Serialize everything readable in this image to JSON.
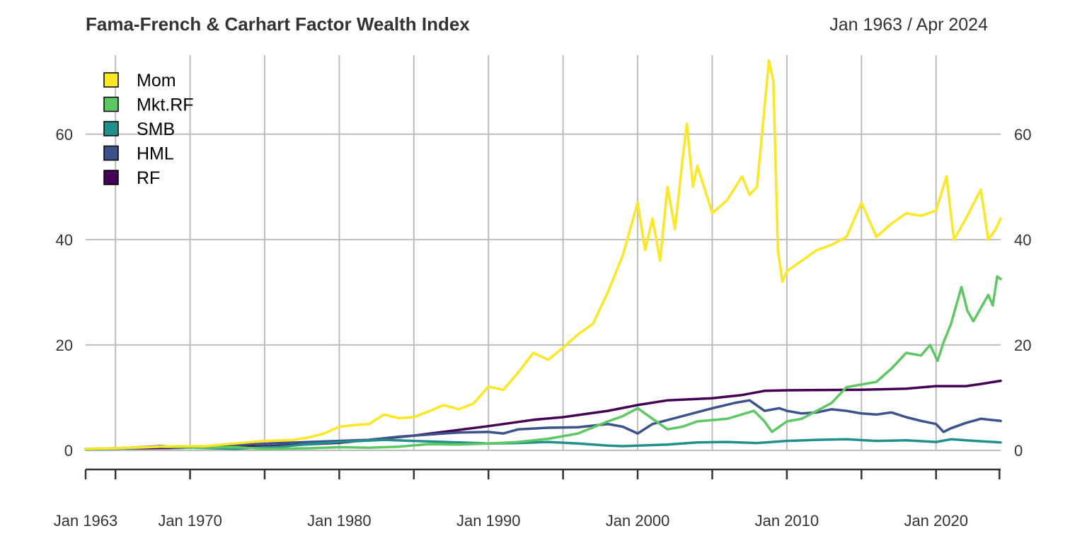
{
  "chart_data": {
    "type": "line",
    "title": "Fama-French & Carhart Factor Wealth Index",
    "date_range": "Jan 1963 / Apr 2024",
    "x_start": "1963-01",
    "x_end": "2024-04",
    "x_tick_labels": [
      "Jan 1963",
      "Jan 1970",
      "Jan 1980",
      "Jan 1990",
      "Jan 2000",
      "Jan 2010",
      "Jan 2020"
    ],
    "x_tick_years": [
      1963,
      1970,
      1980,
      1990,
      2000,
      2010,
      2020
    ],
    "x_minor_tick_years": [
      1963,
      1965,
      1970,
      1975,
      1980,
      1985,
      1990,
      1995,
      2000,
      2005,
      2010,
      2015,
      2020,
      2024.25
    ],
    "x_grid_years": [
      1965,
      1970,
      1975,
      1980,
      1985,
      1990,
      1995,
      2000,
      2005,
      2010,
      2015,
      2020
    ],
    "y_ticks": [
      0,
      20,
      40,
      60
    ],
    "ylim": [
      0,
      75
    ],
    "grid": true,
    "legend_position": "top-left",
    "series": [
      {
        "name": "Mom",
        "color": "#FDE725",
        "points": [
          [
            1963,
            0.3
          ],
          [
            1965,
            0.4
          ],
          [
            1967,
            0.6
          ],
          [
            1969,
            0.8
          ],
          [
            1971,
            0.8
          ],
          [
            1973,
            1.3
          ],
          [
            1975,
            1.8
          ],
          [
            1977,
            2.0
          ],
          [
            1978,
            2.5
          ],
          [
            1979,
            3.2
          ],
          [
            1980,
            4.5
          ],
          [
            1981,
            4.8
          ],
          [
            1982,
            5.0
          ],
          [
            1983,
            6.8
          ],
          [
            1984,
            6.1
          ],
          [
            1985,
            6.3
          ],
          [
            1986,
            7.4
          ],
          [
            1987,
            8.6
          ],
          [
            1988,
            7.8
          ],
          [
            1989,
            8.9
          ],
          [
            1990,
            12.1
          ],
          [
            1991,
            11.5
          ],
          [
            1992,
            14.8
          ],
          [
            1993,
            18.5
          ],
          [
            1994,
            17.2
          ],
          [
            1995,
            19.5
          ],
          [
            1996,
            22.0
          ],
          [
            1997,
            24.0
          ],
          [
            1998,
            30.0
          ],
          [
            1999,
            37.0
          ],
          [
            2000,
            47.0
          ],
          [
            2000.5,
            38.0
          ],
          [
            2001,
            44.0
          ],
          [
            2001.5,
            36.0
          ],
          [
            2002,
            50.0
          ],
          [
            2002.5,
            42.0
          ],
          [
            2003,
            55.0
          ],
          [
            2003.3,
            62.0
          ],
          [
            2003.7,
            50.0
          ],
          [
            2004,
            54.0
          ],
          [
            2005,
            45.0
          ],
          [
            2006,
            47.5
          ],
          [
            2007,
            52.0
          ],
          [
            2007.5,
            48.5
          ],
          [
            2008,
            50.0
          ],
          [
            2008.5,
            65.0
          ],
          [
            2008.8,
            74.0
          ],
          [
            2009.1,
            70.0
          ],
          [
            2009.4,
            38.0
          ],
          [
            2009.7,
            32.0
          ],
          [
            2010,
            34.0
          ],
          [
            2011,
            36.0
          ],
          [
            2012,
            38.0
          ],
          [
            2013,
            39.0
          ],
          [
            2014,
            40.5
          ],
          [
            2015,
            47.0
          ],
          [
            2016,
            40.5
          ],
          [
            2017,
            43.0
          ],
          [
            2018,
            45.0
          ],
          [
            2019,
            44.5
          ],
          [
            2020,
            45.5
          ],
          [
            2020.7,
            52.0
          ],
          [
            2021.2,
            40.0
          ],
          [
            2022,
            44.0
          ],
          [
            2023,
            49.5
          ],
          [
            2023.5,
            40.0
          ],
          [
            2024,
            42.0
          ],
          [
            2024.33,
            44.0
          ]
        ]
      },
      {
        "name": "Mkt.RF",
        "color": "#5DC863",
        "points": [
          [
            1963,
            0.2
          ],
          [
            1966,
            0.5
          ],
          [
            1968,
            0.7
          ],
          [
            1970,
            0.5
          ],
          [
            1973,
            0.6
          ],
          [
            1975,
            0.3
          ],
          [
            1978,
            0.4
          ],
          [
            1980,
            0.6
          ],
          [
            1982,
            0.5
          ],
          [
            1984,
            0.7
          ],
          [
            1986,
            1.2
          ],
          [
            1988,
            1.1
          ],
          [
            1990,
            1.3
          ],
          [
            1992,
            1.6
          ],
          [
            1994,
            2.2
          ],
          [
            1996,
            3.2
          ],
          [
            1998,
            5.5
          ],
          [
            1999,
            6.5
          ],
          [
            2000,
            8.0
          ],
          [
            2001,
            6.0
          ],
          [
            2002,
            4.0
          ],
          [
            2003,
            4.5
          ],
          [
            2004,
            5.5
          ],
          [
            2006,
            6.0
          ],
          [
            2007.8,
            7.5
          ],
          [
            2008.5,
            5.5
          ],
          [
            2009,
            3.5
          ],
          [
            2010,
            5.5
          ],
          [
            2011,
            6.0
          ],
          [
            2013,
            9.0
          ],
          [
            2014,
            12.0
          ],
          [
            2015,
            12.5
          ],
          [
            2016,
            13.0
          ],
          [
            2017,
            15.5
          ],
          [
            2018,
            18.5
          ],
          [
            2019,
            18.0
          ],
          [
            2019.6,
            20.0
          ],
          [
            2020.1,
            17.0
          ],
          [
            2020.5,
            20.5
          ],
          [
            2021,
            24.0
          ],
          [
            2021.7,
            31.0
          ],
          [
            2022.1,
            26.5
          ],
          [
            2022.5,
            24.5
          ],
          [
            2023,
            27.0
          ],
          [
            2023.5,
            29.5
          ],
          [
            2023.8,
            27.5
          ],
          [
            2024.1,
            33.0
          ],
          [
            2024.33,
            32.5
          ]
        ]
      },
      {
        "name": "SMB",
        "color": "#21908C",
        "points": [
          [
            1963,
            0.2
          ],
          [
            1966,
            0.4
          ],
          [
            1968,
            0.7
          ],
          [
            1970,
            0.5
          ],
          [
            1973,
            0.3
          ],
          [
            1976,
            0.7
          ],
          [
            1978,
            1.2
          ],
          [
            1980,
            1.6
          ],
          [
            1983,
            2.0
          ],
          [
            1985,
            1.8
          ],
          [
            1988,
            1.5
          ],
          [
            1990,
            1.3
          ],
          [
            1992,
            1.4
          ],
          [
            1994,
            1.6
          ],
          [
            1996,
            1.3
          ],
          [
            1998,
            0.9
          ],
          [
            1999,
            0.8
          ],
          [
            2000,
            0.9
          ],
          [
            2002,
            1.1
          ],
          [
            2004,
            1.5
          ],
          [
            2006,
            1.6
          ],
          [
            2008,
            1.4
          ],
          [
            2010,
            1.8
          ],
          [
            2012,
            2.0
          ],
          [
            2014,
            2.1
          ],
          [
            2016,
            1.8
          ],
          [
            2018,
            1.9
          ],
          [
            2020,
            1.6
          ],
          [
            2021,
            2.1
          ],
          [
            2022,
            1.9
          ],
          [
            2024.33,
            1.5
          ]
        ]
      },
      {
        "name": "HML",
        "color": "#3B528B",
        "points": [
          [
            1963,
            0.2
          ],
          [
            1966,
            0.5
          ],
          [
            1968,
            0.8
          ],
          [
            1970,
            0.6
          ],
          [
            1973,
            1.0
          ],
          [
            1976,
            1.4
          ],
          [
            1978,
            1.6
          ],
          [
            1980,
            1.8
          ],
          [
            1982,
            2.0
          ],
          [
            1984,
            2.6
          ],
          [
            1986,
            3.0
          ],
          [
            1988,
            3.4
          ],
          [
            1990,
            3.5
          ],
          [
            1991,
            3.2
          ],
          [
            1992,
            4.0
          ],
          [
            1994,
            4.3
          ],
          [
            1996,
            4.4
          ],
          [
            1998,
            5.0
          ],
          [
            1999,
            4.5
          ],
          [
            2000,
            3.2
          ],
          [
            2001,
            5.0
          ],
          [
            2003,
            6.5
          ],
          [
            2005,
            8.0
          ],
          [
            2006.5,
            9.0
          ],
          [
            2007.5,
            9.5
          ],
          [
            2008.5,
            7.5
          ],
          [
            2009.5,
            8.0
          ],
          [
            2010,
            7.5
          ],
          [
            2011,
            7.0
          ],
          [
            2012,
            7.2
          ],
          [
            2013,
            7.8
          ],
          [
            2014,
            7.5
          ],
          [
            2015,
            7.0
          ],
          [
            2016,
            6.8
          ],
          [
            2017,
            7.2
          ],
          [
            2018,
            6.3
          ],
          [
            2019,
            5.6
          ],
          [
            2020,
            5.0
          ],
          [
            2020.5,
            3.5
          ],
          [
            2021,
            4.2
          ],
          [
            2022,
            5.2
          ],
          [
            2023,
            6.0
          ],
          [
            2024.33,
            5.6
          ]
        ]
      },
      {
        "name": "RF",
        "color": "#440154",
        "points": [
          [
            1963,
            0.3
          ],
          [
            1965,
            0.35
          ],
          [
            1970,
            0.5
          ],
          [
            1975,
            0.75
          ],
          [
            1980,
            1.45
          ],
          [
            1985,
            2.8
          ],
          [
            1990,
            4.6
          ],
          [
            1993,
            5.8
          ],
          [
            1995,
            6.3
          ],
          [
            1998,
            7.5
          ],
          [
            2000,
            8.6
          ],
          [
            2002,
            9.5
          ],
          [
            2005,
            9.9
          ],
          [
            2007,
            10.5
          ],
          [
            2008.5,
            11.3
          ],
          [
            2010,
            11.4
          ],
          [
            2015,
            11.5
          ],
          [
            2018,
            11.7
          ],
          [
            2020,
            12.2
          ],
          [
            2022,
            12.2
          ],
          [
            2023,
            12.6
          ],
          [
            2024.33,
            13.2
          ]
        ]
      }
    ]
  }
}
